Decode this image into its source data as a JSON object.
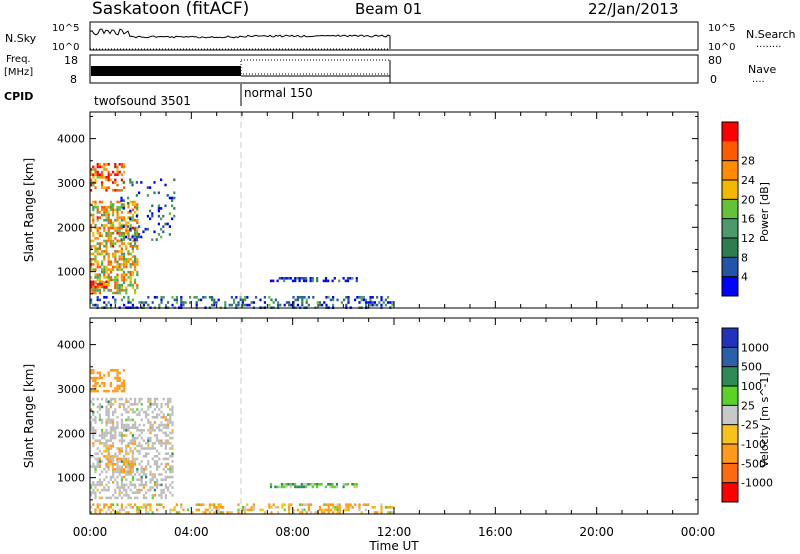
{
  "header": {
    "station": "Saskatoon (fitACF)",
    "beam": "Beam 01",
    "date": "22/Jan/2013"
  },
  "nsky_panel": {
    "left_label": "N.Sky",
    "left_ticks": [
      "10^5",
      "10^0"
    ],
    "right_ticks": [
      "10^5",
      "10^0"
    ],
    "right_label": "N.Search",
    "right_legend_dots": "........"
  },
  "freq_panel": {
    "left_label_1": "Freq.",
    "left_label_2": "[MHz]",
    "left_ticks": [
      "18",
      "8"
    ],
    "right_ticks": [
      "80",
      "0"
    ],
    "right_label": "Nave",
    "right_legend_dots": "...."
  },
  "cpid_panel": {
    "label": "CPID",
    "modes": [
      "twofsound 3501",
      "normal 150"
    ]
  },
  "colors": {
    "power_scale": [
      "#0000ff",
      "#2255aa",
      "#2e7d4f",
      "#4a9a6a",
      "#63c23a",
      "#f5b800",
      "#ff8c00",
      "#ff5a00",
      "#ff0000"
    ],
    "velocity_scale": [
      "#2233bb",
      "#2a60a8",
      "#2f8a55",
      "#5ad22a",
      "#c8c8c8",
      "#f7c21a",
      "#ff9a1a",
      "#ff6a10",
      "#ff0000"
    ],
    "grey_scatter": "#bdbdbd"
  },
  "chart_data": [
    {
      "type": "heatmap",
      "title": "",
      "xlabel": "",
      "ylabel": "Slant Range [km]",
      "x_ticks": [
        "00:00",
        "04:00",
        "08:00",
        "12:00",
        "16:00",
        "20:00",
        "00:00"
      ],
      "xlim_hours": [
        0,
        24
      ],
      "y_ticks": [
        "1000",
        "2000",
        "3000",
        "4000"
      ],
      "ylim_km": [
        180,
        4600
      ],
      "colorbar": {
        "label": "Power [dB]",
        "ticks": [
          "4",
          "8",
          "12",
          "16",
          "20",
          "24",
          "28"
        ],
        "range": [
          0,
          32
        ]
      },
      "mode_boundary_hours": 6.0,
      "data_end_hours": 12.0,
      "regions": [
        {
          "t0": 0.0,
          "t1": 1.9,
          "r0": 500,
          "r1": 2600,
          "value": 20,
          "density": 0.55
        },
        {
          "t0": 0.0,
          "t1": 1.4,
          "r0": 2800,
          "r1": 3450,
          "value": 26,
          "density": 0.45
        },
        {
          "t0": 0.0,
          "t1": 0.7,
          "r0": 600,
          "r1": 800,
          "value": 28,
          "density": 0.6
        },
        {
          "t0": 1.2,
          "t1": 3.4,
          "r0": 1700,
          "r1": 3100,
          "value": 6,
          "density": 0.12
        },
        {
          "t0": 0.0,
          "t1": 12.0,
          "r0": 180,
          "r1": 450,
          "value": 6,
          "density": 0.35
        },
        {
          "t0": 7.1,
          "t1": 10.6,
          "r0": 780,
          "r1": 880,
          "value": 4,
          "density": 0.55
        }
      ]
    },
    {
      "type": "heatmap",
      "title": "",
      "xlabel": "Time UT",
      "ylabel": "Slant Range [km]",
      "x_ticks": [
        "00:00",
        "04:00",
        "08:00",
        "12:00",
        "16:00",
        "20:00",
        "00:00"
      ],
      "xlim_hours": [
        0,
        24
      ],
      "y_ticks": [
        "1000",
        "2000",
        "3000",
        "4000"
      ],
      "ylim_km": [
        180,
        4600
      ],
      "colorbar": {
        "label": "Velocity [m s^-1]",
        "ticks": [
          "1000",
          "500",
          "100",
          "25",
          "-25",
          "-100",
          "-500",
          "-1000"
        ],
        "range": [
          -1000,
          1000
        ]
      },
      "mode_boundary_hours": 6.0,
      "data_end_hours": 12.0,
      "regions": [
        {
          "t0": 0.0,
          "t1": 3.3,
          "r0": 500,
          "r1": 2800,
          "value": 0,
          "density": 0.45
        },
        {
          "t0": 0.0,
          "t1": 1.4,
          "r0": 2900,
          "r1": 3450,
          "value": -300,
          "density": 0.45
        },
        {
          "t0": 0.6,
          "t1": 1.8,
          "r0": 1100,
          "r1": 1800,
          "value": -150,
          "density": 0.35
        },
        {
          "t0": 0.0,
          "t1": 12.0,
          "r0": 180,
          "r1": 420,
          "value": -100,
          "density": 0.35
        },
        {
          "t0": 7.1,
          "t1": 10.6,
          "r0": 780,
          "r1": 880,
          "value": 120,
          "density": 0.55
        }
      ]
    }
  ]
}
